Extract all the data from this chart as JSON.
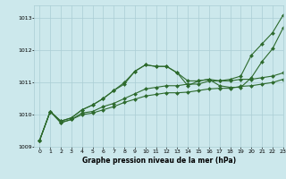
{
  "xlabel": "Graphe pression niveau de la mer (hPa)",
  "bg_color": "#cce8ec",
  "grid_color": "#aacdd4",
  "line_color": "#2d6a2d",
  "marker": "D",
  "markersize": 2.0,
  "linewidth": 0.8,
  "ylim": [
    1009.0,
    1013.4
  ],
  "xlim": [
    -0.5,
    23
  ],
  "yticks": [
    1009,
    1010,
    1011,
    1012,
    1013
  ],
  "xticks": [
    0,
    1,
    2,
    3,
    4,
    5,
    6,
    7,
    8,
    9,
    10,
    11,
    12,
    13,
    14,
    15,
    16,
    17,
    18,
    19,
    20,
    21,
    22,
    23
  ],
  "series": [
    [
      1009.2,
      1010.1,
      1009.8,
      1009.9,
      1010.15,
      1010.3,
      1010.5,
      1010.75,
      1011.0,
      1011.35,
      1011.55,
      1011.5,
      1011.5,
      1011.3,
      1010.9,
      1011.05,
      1011.1,
      1011.05,
      1011.1,
      1011.2,
      1011.85,
      1012.2,
      1012.55,
      1013.1
    ],
    [
      1009.2,
      1010.1,
      1009.8,
      1009.9,
      1010.15,
      1010.3,
      1010.5,
      1010.75,
      1010.95,
      1011.35,
      1011.55,
      1011.5,
      1011.5,
      1011.3,
      1011.05,
      1011.05,
      1011.1,
      1010.9,
      1010.85,
      1010.85,
      1011.15,
      1011.65,
      1012.05,
      1012.7
    ],
    [
      1009.2,
      1010.1,
      1009.75,
      1009.85,
      1010.05,
      1010.1,
      1010.25,
      1010.35,
      1010.5,
      1010.65,
      1010.8,
      1010.85,
      1010.9,
      1010.9,
      1010.95,
      1010.95,
      1011.05,
      1011.05,
      1011.05,
      1011.1,
      1011.1,
      1011.15,
      1011.2,
      1011.3
    ],
    [
      1009.2,
      1010.1,
      1009.75,
      1009.85,
      1010.0,
      1010.05,
      1010.15,
      1010.25,
      1010.38,
      1010.48,
      1010.58,
      1010.63,
      1010.68,
      1010.68,
      1010.7,
      1010.75,
      1010.8,
      1010.82,
      1010.82,
      1010.88,
      1010.9,
      1010.95,
      1011.0,
      1011.1
    ]
  ]
}
